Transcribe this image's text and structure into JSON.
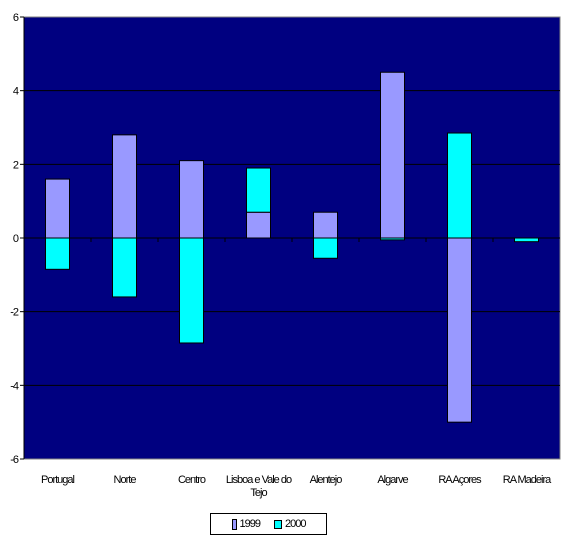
{
  "chart_data": {
    "type": "bar",
    "categories": [
      "Portugal",
      "Norte",
      "Centro",
      "Lisboa e Vale do Tejo",
      "Alentejo",
      "Algarve",
      "RA Açores",
      "RA Madeira"
    ],
    "category_lines": [
      [
        "Portugal"
      ],
      [
        "Norte"
      ],
      [
        "Centro"
      ],
      [
        "Lisboa e Vale do",
        "Tejo"
      ],
      [
        "Alentejo"
      ],
      [
        "Algarve"
      ],
      [
        "RA Açores"
      ],
      [
        "RA Madeira"
      ]
    ],
    "series": [
      {
        "name": "1999",
        "values": [
          1.6,
          2.8,
          2.1,
          0.7,
          0.7,
          4.5,
          -5.0,
          0.0
        ],
        "color": "#9999ff"
      },
      {
        "name": "2000",
        "values": [
          -0.85,
          -1.6,
          -2.85,
          1.2,
          -0.55,
          -0.05,
          2.85,
          -0.1
        ],
        "color": "#00ffff"
      }
    ],
    "ylim": [
      -6,
      6
    ],
    "yticks": [
      -6,
      -4,
      -2,
      0,
      2,
      4,
      6
    ],
    "grid": true,
    "plot_background": "#000080",
    "legend_position": "bottom",
    "title": "",
    "xlabel": "",
    "ylabel": ""
  },
  "legend": {
    "items": [
      {
        "label": "1999",
        "color": "#9999ff"
      },
      {
        "label": "2000",
        "color": "#00ffff"
      }
    ]
  }
}
